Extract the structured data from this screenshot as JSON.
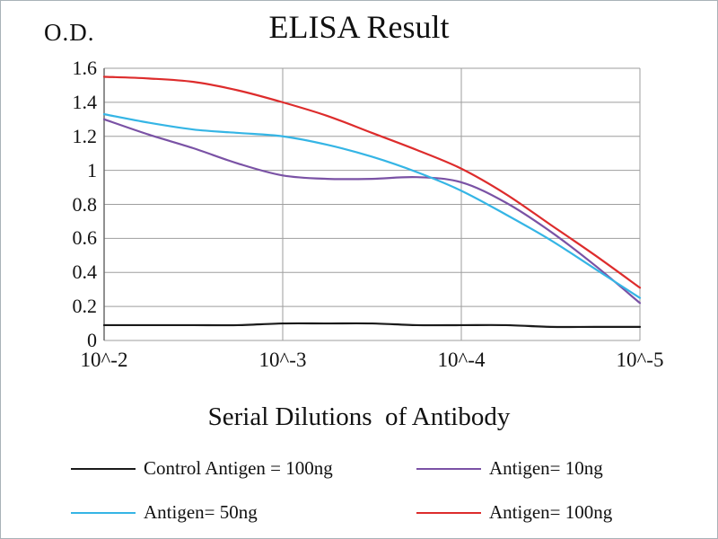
{
  "chart_data": {
    "type": "line",
    "title": "ELISA Result",
    "ylabel": "O.D.",
    "xlabel": "Serial Dilutions  of Antibody",
    "categories": [
      "10^-2",
      "10^-3",
      "10^-4",
      "10^-5"
    ],
    "ytick_labels": [
      "0",
      "0.2",
      "0.4",
      "0.6",
      "0.8",
      "1",
      "1.2",
      "1.4",
      "1.6"
    ],
    "yticks": [
      0,
      0.2,
      0.4,
      0.6,
      0.8,
      1.0,
      1.2,
      1.4,
      1.6
    ],
    "ylim": [
      0,
      1.6
    ],
    "grid": true,
    "legend_position": "bottom",
    "x": [
      0,
      0.25,
      0.5,
      0.75,
      1,
      1.25,
      1.5,
      1.75,
      2,
      2.25,
      2.5,
      2.75,
      3
    ],
    "series": [
      {
        "name": "Control Antigen = 100ng",
        "color": "#1a1a1a",
        "values": [
          0.09,
          0.09,
          0.09,
          0.09,
          0.1,
          0.1,
          0.1,
          0.09,
          0.09,
          0.09,
          0.08,
          0.08,
          0.08
        ]
      },
      {
        "name": "Antigen= 10ng",
        "color": "#7a52a5",
        "values": [
          1.3,
          1.21,
          1.13,
          1.04,
          0.97,
          0.95,
          0.95,
          0.96,
          0.93,
          0.81,
          0.64,
          0.44,
          0.22
        ]
      },
      {
        "name": "Antigen= 50ng",
        "color": "#35b5e5",
        "values": [
          1.33,
          1.28,
          1.24,
          1.22,
          1.2,
          1.15,
          1.08,
          0.99,
          0.88,
          0.74,
          0.59,
          0.42,
          0.25
        ]
      },
      {
        "name": "Antigen= 100ng",
        "color": "#dd2c2c",
        "values": [
          1.55,
          1.54,
          1.52,
          1.47,
          1.4,
          1.32,
          1.22,
          1.12,
          1.01,
          0.86,
          0.68,
          0.5,
          0.31
        ]
      }
    ],
    "gridline_color": "#9e9e9e",
    "axis_color": "#6b6b6b"
  }
}
